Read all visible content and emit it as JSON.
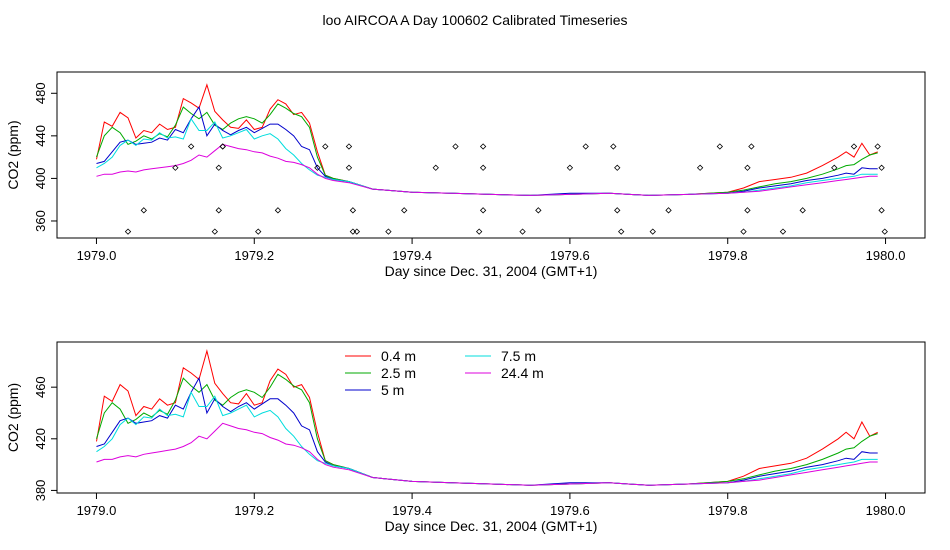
{
  "title": "loo AIRCOA A  Day 100602  Calibrated Timeseries",
  "colors": {
    "0.4 m": "#ff0000",
    "2.5 m": "#00aa00",
    "5 m": "#0000cc",
    "7.5 m": "#00dddd",
    "24.4 m": "#dd00dd"
  },
  "chart_data": [
    {
      "type": "line",
      "xlabel": "Day since Dec. 31, 2004 (GMT+1)",
      "ylabel": "CO2 (ppm)",
      "xlim": [
        1978.95,
        1980.05
      ],
      "ylim": [
        344,
        500
      ],
      "x_ticks": [
        "1979.0",
        "1979.2",
        "1979.4",
        "1979.6",
        "1979.8",
        "1980.0"
      ],
      "y_ticks": [
        "360",
        "400",
        "440",
        "480"
      ],
      "legend": "none",
      "series": [
        {
          "key": "0.4 m",
          "x": [
            1979.0,
            1979.01,
            1979.02,
            1979.03,
            1979.04,
            1979.05,
            1979.06,
            1979.07,
            1979.08,
            1979.09,
            1979.1,
            1979.11,
            1979.12,
            1979.13,
            1979.14,
            1979.15,
            1979.16,
            1979.17,
            1979.18,
            1979.19,
            1979.2,
            1979.21,
            1979.22,
            1979.23,
            1979.24,
            1979.25,
            1979.26,
            1979.27,
            1979.28,
            1979.29,
            1979.3,
            1979.32,
            1979.35,
            1979.4,
            1979.45,
            1979.5,
            1979.55,
            1979.6,
            1979.65,
            1979.7,
            1979.75,
            1979.8,
            1979.82,
            1979.84,
            1979.86,
            1979.88,
            1979.9,
            1979.92,
            1979.94,
            1979.95,
            1979.96,
            1979.97,
            1979.98,
            1979.99
          ],
          "y": [
            418,
            453,
            449,
            462,
            457,
            438,
            445,
            443,
            451,
            446,
            448,
            475,
            471,
            466,
            488,
            463,
            455,
            448,
            447,
            455,
            446,
            448,
            465,
            474,
            470,
            460,
            462,
            452,
            425,
            403,
            400,
            397,
            390,
            387,
            386,
            385,
            384,
            385,
            386,
            384,
            385,
            387,
            391,
            397,
            399,
            401,
            405,
            412,
            420,
            425,
            420,
            433,
            422,
            425
          ]
        },
        {
          "key": "2.5 m",
          "x": [
            1979.0,
            1979.01,
            1979.02,
            1979.03,
            1979.04,
            1979.05,
            1979.06,
            1979.07,
            1979.08,
            1979.09,
            1979.1,
            1979.11,
            1979.12,
            1979.13,
            1979.14,
            1979.15,
            1979.16,
            1979.17,
            1979.18,
            1979.19,
            1979.2,
            1979.21,
            1979.22,
            1979.23,
            1979.24,
            1979.25,
            1979.26,
            1979.27,
            1979.28,
            1979.29,
            1979.3,
            1979.32,
            1979.35,
            1979.4,
            1979.45,
            1979.5,
            1979.55,
            1979.6,
            1979.65,
            1979.7,
            1979.75,
            1979.8,
            1979.82,
            1979.84,
            1979.86,
            1979.88,
            1979.9,
            1979.92,
            1979.94,
            1979.95,
            1979.96,
            1979.97,
            1979.98,
            1979.99
          ],
          "y": [
            420,
            440,
            448,
            443,
            432,
            435,
            440,
            437,
            442,
            439,
            450,
            467,
            461,
            456,
            462,
            450,
            446,
            452,
            456,
            458,
            456,
            452,
            460,
            470,
            466,
            461,
            458,
            448,
            420,
            403,
            400,
            397,
            390,
            387,
            386,
            385,
            384,
            385,
            386,
            384,
            385,
            387,
            389,
            392,
            395,
            397,
            400,
            404,
            409,
            412,
            413,
            418,
            422,
            424
          ]
        },
        {
          "key": "5 m",
          "x": [
            1979.0,
            1979.01,
            1979.02,
            1979.03,
            1979.04,
            1979.05,
            1979.06,
            1979.07,
            1979.08,
            1979.09,
            1979.1,
            1979.11,
            1979.12,
            1979.13,
            1979.14,
            1979.15,
            1979.16,
            1979.17,
            1979.18,
            1979.19,
            1979.2,
            1979.21,
            1979.22,
            1979.23,
            1979.24,
            1979.25,
            1979.26,
            1979.27,
            1979.28,
            1979.29,
            1979.3,
            1979.32,
            1979.35,
            1979.4,
            1979.45,
            1979.5,
            1979.55,
            1979.6,
            1979.65,
            1979.7,
            1979.75,
            1979.8,
            1979.82,
            1979.84,
            1979.86,
            1979.88,
            1979.9,
            1979.92,
            1979.94,
            1979.95,
            1979.96,
            1979.97,
            1979.98,
            1979.99
          ],
          "y": [
            414,
            416,
            425,
            434,
            436,
            432,
            433,
            434,
            438,
            436,
            446,
            443,
            456,
            467,
            440,
            451,
            445,
            441,
            445,
            448,
            443,
            447,
            451,
            451,
            446,
            440,
            430,
            427,
            410,
            402,
            399,
            397,
            390,
            387,
            386,
            385,
            384,
            386,
            386,
            384,
            385,
            386,
            388,
            391,
            393,
            395,
            398,
            400,
            403,
            405,
            404,
            410,
            409,
            409
          ]
        },
        {
          "key": "7.5 m",
          "x": [
            1979.0,
            1979.01,
            1979.02,
            1979.03,
            1979.04,
            1979.05,
            1979.06,
            1979.07,
            1979.08,
            1979.09,
            1979.1,
            1979.11,
            1979.12,
            1979.13,
            1979.14,
            1979.15,
            1979.16,
            1979.17,
            1979.18,
            1979.19,
            1979.2,
            1979.21,
            1979.22,
            1979.23,
            1979.24,
            1979.25,
            1979.26,
            1979.27,
            1979.28,
            1979.29,
            1979.3,
            1979.32,
            1979.35,
            1979.4,
            1979.45,
            1979.5,
            1979.55,
            1979.6,
            1979.65,
            1979.7,
            1979.75,
            1979.8,
            1979.82,
            1979.84,
            1979.86,
            1979.88,
            1979.9,
            1979.92,
            1979.94,
            1979.95,
            1979.96,
            1979.97,
            1979.98,
            1979.99
          ],
          "y": [
            410,
            414,
            420,
            431,
            436,
            431,
            437,
            436,
            443,
            438,
            439,
            437,
            456,
            445,
            445,
            453,
            438,
            440,
            443,
            446,
            437,
            440,
            442,
            437,
            428,
            422,
            414,
            408,
            403,
            401,
            399,
            397,
            390,
            387,
            386,
            385,
            384,
            385,
            386,
            384,
            385,
            386,
            387,
            389,
            391,
            393,
            396,
            398,
            400,
            401,
            402,
            404,
            404,
            404
          ]
        },
        {
          "key": "24.4 m",
          "x": [
            1979.0,
            1979.01,
            1979.02,
            1979.03,
            1979.04,
            1979.05,
            1979.06,
            1979.07,
            1979.08,
            1979.09,
            1979.1,
            1979.11,
            1979.12,
            1979.13,
            1979.14,
            1979.15,
            1979.16,
            1979.17,
            1979.18,
            1979.19,
            1979.2,
            1979.21,
            1979.22,
            1979.23,
            1979.24,
            1979.25,
            1979.26,
            1979.27,
            1979.28,
            1979.29,
            1979.3,
            1979.32,
            1979.35,
            1979.4,
            1979.45,
            1979.5,
            1979.55,
            1979.6,
            1979.65,
            1979.7,
            1979.75,
            1979.8,
            1979.82,
            1979.84,
            1979.86,
            1979.88,
            1979.9,
            1979.92,
            1979.94,
            1979.95,
            1979.96,
            1979.97,
            1979.98,
            1979.99
          ],
          "y": [
            402,
            404,
            404,
            406,
            407,
            406,
            408,
            409,
            410,
            411,
            412,
            414,
            417,
            422,
            420,
            426,
            432,
            430,
            428,
            427,
            425,
            424,
            421,
            419,
            416,
            415,
            413,
            410,
            404,
            400,
            398,
            396,
            390,
            387,
            386,
            385,
            384,
            385,
            386,
            384,
            385,
            386,
            387,
            388,
            390,
            392,
            394,
            396,
            398,
            399,
            400,
            401,
            402,
            402
          ]
        }
      ],
      "scatter_points": {
        "x": [
          1979.04,
          1979.06,
          1979.1,
          1979.12,
          1979.15,
          1979.155,
          1979.155,
          1979.16,
          1979.16,
          1979.205,
          1979.23,
          1979.28,
          1979.29,
          1979.32,
          1979.32,
          1979.325,
          1979.325,
          1979.33,
          1979.37,
          1979.39,
          1979.43,
          1979.455,
          1979.485,
          1979.49,
          1979.49,
          1979.49,
          1979.54,
          1979.56,
          1979.6,
          1979.62,
          1979.655,
          1979.66,
          1979.66,
          1979.665,
          1979.705,
          1979.725,
          1979.765,
          1979.79,
          1979.82,
          1979.825,
          1979.825,
          1979.83,
          1979.87,
          1979.895,
          1979.935,
          1979.96,
          1979.99,
          1979.995,
          1979.995,
          1979.999
        ],
        "y": [
          350,
          370,
          410,
          430,
          350,
          410,
          370,
          430,
          430,
          350,
          370,
          410,
          430,
          430,
          410,
          370,
          350,
          350,
          350,
          370,
          410,
          430,
          350,
          410,
          370,
          430,
          350,
          370,
          410,
          430,
          430,
          410,
          370,
          350,
          350,
          370,
          410,
          430,
          350,
          410,
          370,
          430,
          350,
          370,
          410,
          430,
          430,
          410,
          370,
          350
        ]
      }
    },
    {
      "type": "line",
      "xlabel": "Day since Dec. 31, 2004 (GMT+1)",
      "ylabel": "CO2 (ppm)",
      "xlim": [
        1978.95,
        1980.05
      ],
      "ylim": [
        378,
        495
      ],
      "x_ticks": [
        "1979.0",
        "1979.2",
        "1979.4",
        "1979.6",
        "1979.8",
        "1980.0"
      ],
      "y_ticks": [
        "380",
        "420",
        "460"
      ],
      "legend": "top-center",
      "legend_entries": [
        "0.4 m",
        "2.5 m",
        "5 m",
        "7.5 m",
        "24.4 m"
      ],
      "series_ref": "same_as_top"
    }
  ]
}
